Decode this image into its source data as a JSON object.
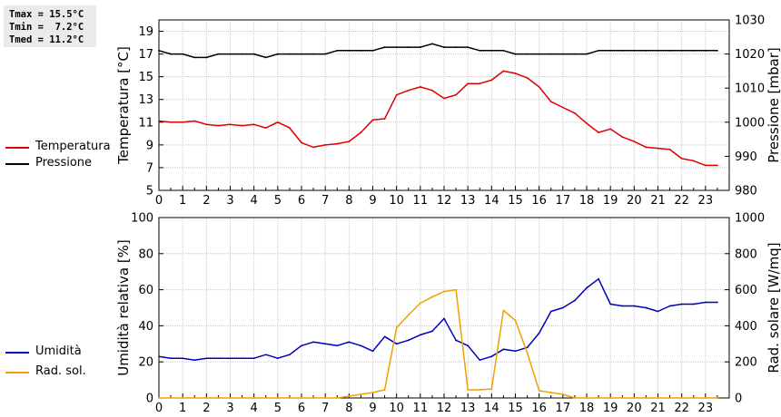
{
  "stats": {
    "tmax": "Tmax = 15.5°C",
    "tmin": "Tmin =  7.2°C",
    "tmed": "Tmed = 11.2°C"
  },
  "chart_data": [
    {
      "type": "line",
      "x_ticks": [
        "0",
        "1",
        "2",
        "3",
        "4",
        "5",
        "6",
        "7",
        "8",
        "9",
        "10",
        "11",
        "12",
        "13",
        "14",
        "15",
        "16",
        "17",
        "18",
        "19",
        "20",
        "21",
        "22",
        "23"
      ],
      "xlim": [
        0,
        24
      ],
      "ylabel_left": "Temperatura [°C]",
      "ylabel_right": "Pressione [mbar]",
      "ylim_left": [
        5,
        20
      ],
      "yticks_left": [
        5,
        7,
        9,
        11,
        13,
        15,
        17,
        19
      ],
      "ylim_right": [
        980,
        1030
      ],
      "yticks_right": [
        980,
        990,
        1000,
        1010,
        1020,
        1030
      ],
      "grid": true,
      "legend_position": "left",
      "series": [
        {
          "name": "Temperatura",
          "axis": "left",
          "color": "#dd0000",
          "x": [
            0,
            0.5,
            1,
            1.5,
            2,
            2.5,
            3,
            3.5,
            4,
            4.5,
            5,
            5.5,
            6,
            6.5,
            7,
            7.5,
            8,
            8.5,
            9,
            9.5,
            10,
            10.5,
            11,
            11.5,
            12,
            12.5,
            13,
            13.5,
            14,
            14.5,
            15,
            15.5,
            16,
            16.5,
            17,
            17.5,
            18,
            18.5,
            19,
            19.5,
            20,
            20.5,
            21,
            21.5,
            22,
            22.5,
            23,
            23.5
          ],
          "y": [
            11.1,
            11.0,
            11.0,
            11.1,
            10.8,
            10.7,
            10.8,
            10.7,
            10.8,
            10.5,
            11.0,
            10.5,
            9.2,
            8.8,
            9.0,
            9.1,
            9.3,
            10.1,
            11.2,
            11.3,
            13.4,
            13.8,
            14.1,
            13.8,
            13.1,
            13.4,
            14.4,
            14.4,
            14.7,
            15.5,
            15.3,
            14.9,
            14.1,
            12.8,
            12.3,
            11.8,
            10.9,
            10.1,
            10.4,
            9.7,
            9.3,
            8.8,
            8.7,
            8.6,
            7.8,
            7.6,
            7.2,
            7.2
          ]
        },
        {
          "name": "Pressione",
          "axis": "right",
          "color": "#000000",
          "x": [
            0,
            0.5,
            1,
            1.5,
            2,
            2.5,
            3,
            3.5,
            4,
            4.5,
            5,
            5.5,
            6,
            6.5,
            7,
            7.5,
            8,
            8.5,
            9,
            9.5,
            10,
            10.5,
            11,
            11.5,
            12,
            12.5,
            13,
            13.5,
            14,
            14.5,
            15,
            15.5,
            16,
            16.5,
            17,
            17.5,
            18,
            18.5,
            19,
            19.5,
            20,
            20.5,
            21,
            21.5,
            22,
            22.5,
            23,
            23.5
          ],
          "y": [
            1021,
            1020,
            1020,
            1019,
            1019,
            1020,
            1020,
            1020,
            1020,
            1019,
            1020,
            1020,
            1020,
            1020,
            1020,
            1021,
            1021,
            1021,
            1021,
            1022,
            1022,
            1022,
            1022,
            1023,
            1022,
            1022,
            1022,
            1021,
            1021,
            1021,
            1020,
            1020,
            1020,
            1020,
            1020,
            1020,
            1020,
            1021,
            1021,
            1021,
            1021,
            1021,
            1021,
            1021,
            1021,
            1021,
            1021,
            1021
          ]
        }
      ]
    },
    {
      "type": "line",
      "x_ticks": [
        "0",
        "1",
        "2",
        "3",
        "4",
        "5",
        "6",
        "7",
        "8",
        "9",
        "10",
        "11",
        "12",
        "13",
        "14",
        "15",
        "16",
        "17",
        "18",
        "19",
        "20",
        "21",
        "22",
        "23"
      ],
      "xlim": [
        0,
        24
      ],
      "ylabel_left": "Umidità relativa [%]",
      "ylabel_right": "Rad. solare [W/mq]",
      "ylim_left": [
        0,
        100
      ],
      "yticks_left": [
        0,
        20,
        40,
        60,
        80,
        100
      ],
      "ylim_right": [
        0,
        1000
      ],
      "yticks_right": [
        0,
        200,
        400,
        600,
        800,
        1000
      ],
      "grid": true,
      "legend_position": "left",
      "series": [
        {
          "name": "Umidità",
          "axis": "left",
          "color": "#0000bb",
          "x": [
            0,
            0.5,
            1,
            1.5,
            2,
            2.5,
            3,
            3.5,
            4,
            4.5,
            5,
            5.5,
            6,
            6.5,
            7,
            7.5,
            8,
            8.5,
            9,
            9.5,
            10,
            10.5,
            11,
            11.5,
            12,
            12.5,
            13,
            13.5,
            14,
            14.5,
            15,
            15.5,
            16,
            16.5,
            17,
            17.5,
            18,
            18.5,
            19,
            19.5,
            20,
            20.5,
            21,
            21.5,
            22,
            22.5,
            23,
            23.5
          ],
          "y": [
            23,
            22,
            22,
            21,
            22,
            22,
            22,
            22,
            22,
            24,
            22,
            24,
            29,
            31,
            30,
            29,
            31,
            29,
            26,
            34,
            30,
            32,
            35,
            37,
            44,
            32,
            29,
            21,
            23,
            27,
            26,
            28,
            36,
            48,
            50,
            54,
            61,
            66,
            52,
            51,
            51,
            50,
            48,
            51,
            52,
            52,
            53,
            53
          ]
        },
        {
          "name": "Rad. sol.",
          "axis": "right",
          "color": "#f0a000",
          "x": [
            0,
            0.5,
            1,
            1.5,
            2,
            2.5,
            3,
            3.5,
            4,
            4.5,
            5,
            5.5,
            6,
            6.5,
            7,
            7.5,
            8,
            8.5,
            9,
            9.5,
            10,
            10.5,
            11,
            11.5,
            12,
            12.5,
            13,
            13.5,
            14,
            14.5,
            15,
            15.5,
            16,
            16.5,
            17,
            17.5,
            18,
            18.5,
            19,
            19.5,
            20,
            20.5,
            21,
            21.5,
            22,
            22.5,
            23,
            23.5
          ],
          "y": [
            0,
            0,
            0,
            0,
            0,
            0,
            0,
            0,
            0,
            0,
            0,
            0,
            0,
            0,
            0,
            0,
            10,
            20,
            30,
            45,
            390,
            460,
            525,
            560,
            590,
            600,
            45,
            45,
            50,
            485,
            430,
            250,
            40,
            30,
            20,
            0,
            0,
            0,
            0,
            0,
            0,
            0,
            0,
            0,
            0,
            0,
            0,
            0
          ]
        }
      ]
    }
  ]
}
